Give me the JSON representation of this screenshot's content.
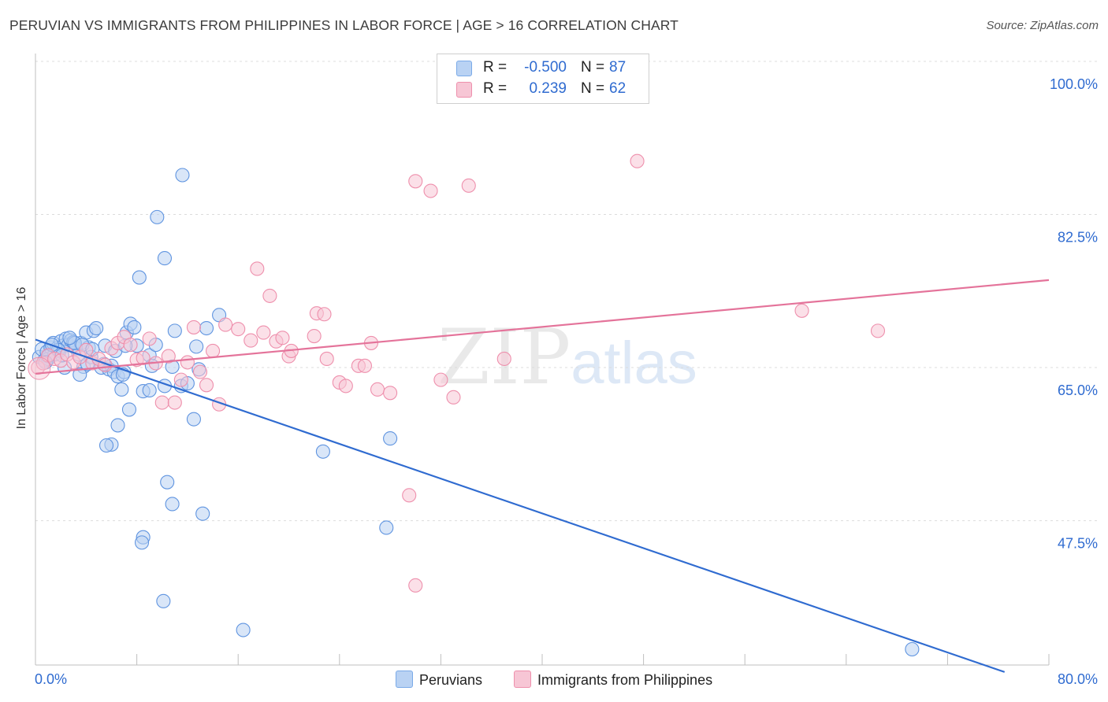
{
  "title": "PERUVIAN VS IMMIGRANTS FROM PHILIPPINES IN LABOR FORCE | AGE > 16 CORRELATION CHART",
  "source": "Source: ZipAtlas.com",
  "watermark": {
    "zip": "ZIP",
    "atlas": "atlas"
  },
  "legend": {
    "r_label": "R =",
    "n_label": "N =",
    "rows": [
      {
        "name": "Peruvians",
        "r": "-0.500",
        "n": "87",
        "color": "#7aaae8",
        "fill": "#b9d2f3"
      },
      {
        "name": "Immigrants from Philippines",
        "r": "0.239",
        "n": "62",
        "color": "#ee8fac",
        "fill": "#f7c6d5"
      }
    ]
  },
  "chart_data": {
    "type": "scatter",
    "title": "PERUVIAN VS IMMIGRANTS FROM PHILIPPINES IN LABOR FORCE | AGE > 16 CORRELATION CHART",
    "xlabel": "",
    "ylabel": "In Labor Force | Age > 16",
    "xlim": [
      0,
      80
    ],
    "ylim": [
      31,
      100
    ],
    "x_tick_labels": [
      "0.0%",
      "80.0%"
    ],
    "y_ticks": [
      47.5,
      65.0,
      82.5,
      100.0
    ],
    "y_tick_labels": [
      "47.5%",
      "65.0%",
      "82.5%",
      "100.0%"
    ],
    "grid": true,
    "series": [
      {
        "name": "Peruvians",
        "color": "#2f6bd0",
        "fill": "#b9d2f3",
        "trend": {
          "x": [
            0,
            76.5
          ],
          "y": [
            68.2,
            30.2
          ]
        },
        "points": [
          [
            0.3,
            66.2
          ],
          [
            0.5,
            67.1
          ],
          [
            0.7,
            65.8
          ],
          [
            0.9,
            66.8
          ],
          [
            1.0,
            66.0
          ],
          [
            1.2,
            67.3
          ],
          [
            1.4,
            67.8
          ],
          [
            1.5,
            66.5
          ],
          [
            1.7,
            67.2
          ],
          [
            1.9,
            66.9
          ],
          [
            2.0,
            68.0
          ],
          [
            2.2,
            67.5
          ],
          [
            2.4,
            68.3
          ],
          [
            2.6,
            67.6
          ],
          [
            2.8,
            68.1
          ],
          [
            3.0,
            67.9
          ],
          [
            3.2,
            67.2
          ],
          [
            3.4,
            66.5
          ],
          [
            3.6,
            67.8
          ],
          [
            3.8,
            65.1
          ],
          [
            4.0,
            69.0
          ],
          [
            4.2,
            67.3
          ],
          [
            4.4,
            66.2
          ],
          [
            4.6,
            69.2
          ],
          [
            4.8,
            69.5
          ],
          [
            5.2,
            65.0
          ],
          [
            5.5,
            67.5
          ],
          [
            5.8,
            64.8
          ],
          [
            6.0,
            65.2
          ],
          [
            6.2,
            64.5
          ],
          [
            6.5,
            64.0
          ],
          [
            6.8,
            62.5
          ],
          [
            7.0,
            64.5
          ],
          [
            7.2,
            69.0
          ],
          [
            7.5,
            70.0
          ],
          [
            7.8,
            69.6
          ],
          [
            8.0,
            67.5
          ],
          [
            8.5,
            62.3
          ],
          [
            9.0,
            66.4
          ],
          [
            9.2,
            65.2
          ],
          [
            9.5,
            67.6
          ],
          [
            10.2,
            62.9
          ],
          [
            10.8,
            65.1
          ],
          [
            11.0,
            69.2
          ],
          [
            11.5,
            62.9
          ],
          [
            12.0,
            63.2
          ],
          [
            12.5,
            59.1
          ],
          [
            12.7,
            67.4
          ],
          [
            12.9,
            64.8
          ],
          [
            13.5,
            69.5
          ],
          [
            14.5,
            71.0
          ],
          [
            3.5,
            64.2
          ],
          [
            6.5,
            58.4
          ],
          [
            6.0,
            56.2
          ],
          [
            5.6,
            56.1
          ],
          [
            7.4,
            60.2
          ],
          [
            8.2,
            75.3
          ],
          [
            9.6,
            82.2
          ],
          [
            10.2,
            77.5
          ],
          [
            11.6,
            87.0
          ],
          [
            10.4,
            51.9
          ],
          [
            10.8,
            49.4
          ],
          [
            13.2,
            48.3
          ],
          [
            8.5,
            45.6
          ],
          [
            8.4,
            45.0
          ],
          [
            10.1,
            38.3
          ],
          [
            16.4,
            35.0
          ],
          [
            22.7,
            55.4
          ],
          [
            28.0,
            56.9
          ],
          [
            27.7,
            46.7
          ],
          [
            69.2,
            32.8
          ],
          [
            1.0,
            66.3
          ],
          [
            1.8,
            67.0
          ],
          [
            2.3,
            65.0
          ],
          [
            3.1,
            67.8
          ],
          [
            4.1,
            65.4
          ],
          [
            5.4,
            65.4
          ],
          [
            6.3,
            66.9
          ],
          [
            7.1,
            67.5
          ],
          [
            2.7,
            68.4
          ],
          [
            0.8,
            65.6
          ],
          [
            1.3,
            67.6
          ],
          [
            2.1,
            66.4
          ],
          [
            3.7,
            67.6
          ],
          [
            4.5,
            67.1
          ],
          [
            6.9,
            64.2
          ],
          [
            9.0,
            62.4
          ]
        ]
      },
      {
        "name": "Immigrants from Philippines",
        "color": "#e4739a",
        "fill": "#f7c6d5",
        "trend": {
          "x": [
            0,
            80
          ],
          "y": [
            64.3,
            75.0
          ]
        },
        "points": [
          [
            0.2,
            65.0
          ],
          [
            0.6,
            65.5
          ],
          [
            1.0,
            66.4
          ],
          [
            1.5,
            66.0
          ],
          [
            2.0,
            65.8
          ],
          [
            2.5,
            66.5
          ],
          [
            3.0,
            65.6
          ],
          [
            3.5,
            66.2
          ],
          [
            4.0,
            67.0
          ],
          [
            4.5,
            65.5
          ],
          [
            5.0,
            66.0
          ],
          [
            5.5,
            65.3
          ],
          [
            6.0,
            67.2
          ],
          [
            6.5,
            67.8
          ],
          [
            7.0,
            68.5
          ],
          [
            7.5,
            67.6
          ],
          [
            8.0,
            65.9
          ],
          [
            8.5,
            66.1
          ],
          [
            9.0,
            68.3
          ],
          [
            9.5,
            65.5
          ],
          [
            10.0,
            61.0
          ],
          [
            10.5,
            66.3
          ],
          [
            11.0,
            61.0
          ],
          [
            11.5,
            63.6
          ],
          [
            12.0,
            65.6
          ],
          [
            12.5,
            69.6
          ],
          [
            13.0,
            64.5
          ],
          [
            13.5,
            63.0
          ],
          [
            14.0,
            66.9
          ],
          [
            14.5,
            60.8
          ],
          [
            15.0,
            69.9
          ],
          [
            16.0,
            69.4
          ],
          [
            17.0,
            68.1
          ],
          [
            17.5,
            76.3
          ],
          [
            18.0,
            69.0
          ],
          [
            18.5,
            73.2
          ],
          [
            19.0,
            68.0
          ],
          [
            19.5,
            68.4
          ],
          [
            20.0,
            66.3
          ],
          [
            20.2,
            66.9
          ],
          [
            22.0,
            68.6
          ],
          [
            22.2,
            71.2
          ],
          [
            22.8,
            71.1
          ],
          [
            23.0,
            66.0
          ],
          [
            24.0,
            63.3
          ],
          [
            24.5,
            62.9
          ],
          [
            25.5,
            65.2
          ],
          [
            26.0,
            65.2
          ],
          [
            26.5,
            67.8
          ],
          [
            27.0,
            62.5
          ],
          [
            28.0,
            62.1
          ],
          [
            29.5,
            50.4
          ],
          [
            30.0,
            40.1
          ],
          [
            30.0,
            86.3
          ],
          [
            31.2,
            85.2
          ],
          [
            32.0,
            63.6
          ],
          [
            33.0,
            61.6
          ],
          [
            34.2,
            85.8
          ],
          [
            37.0,
            66.0
          ],
          [
            47.5,
            88.6
          ],
          [
            60.5,
            71.5
          ],
          [
            66.5,
            69.2
          ]
        ]
      }
    ]
  }
}
